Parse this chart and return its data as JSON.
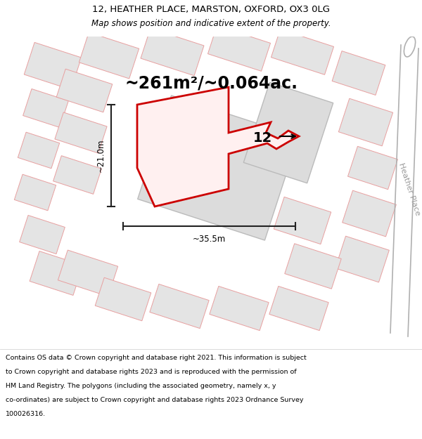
{
  "title_line1": "12, HEATHER PLACE, MARSTON, OXFORD, OX3 0LG",
  "title_line2": "Map shows position and indicative extent of the property.",
  "area_text": "~261m²/~0.064ac.",
  "label_12": "12",
  "dim_height": "~21.0m",
  "dim_width": "~35.5m",
  "road_label": "Heather Place",
  "footer_text": "Contains OS data © Crown copyright and database right 2021. This information is subject to Crown copyright and database rights 2023 and is reproduced with the permission of HM Land Registry. The polygons (including the associated geometry, namely x, y co-ordinates) are subject to Crown copyright and database rights 2023 Ordnance Survey 100026316.",
  "bg_color": "#f2f2f2",
  "building_fill": "#e4e4e4",
  "building_edge": "#e8a0a0",
  "highlight_fill": "#dcdcdc",
  "highlight_edge": "#bbbbbb",
  "plot_color": "#cc0000",
  "dim_color": "#222222",
  "road_color": "#b0b0b0",
  "title_fs": 9.5,
  "subtitle_fs": 8.5,
  "area_fs": 17,
  "label_fs": 14,
  "dim_fs": 8.5,
  "road_fs": 8,
  "footer_fs": 6.8,
  "ang": -18
}
